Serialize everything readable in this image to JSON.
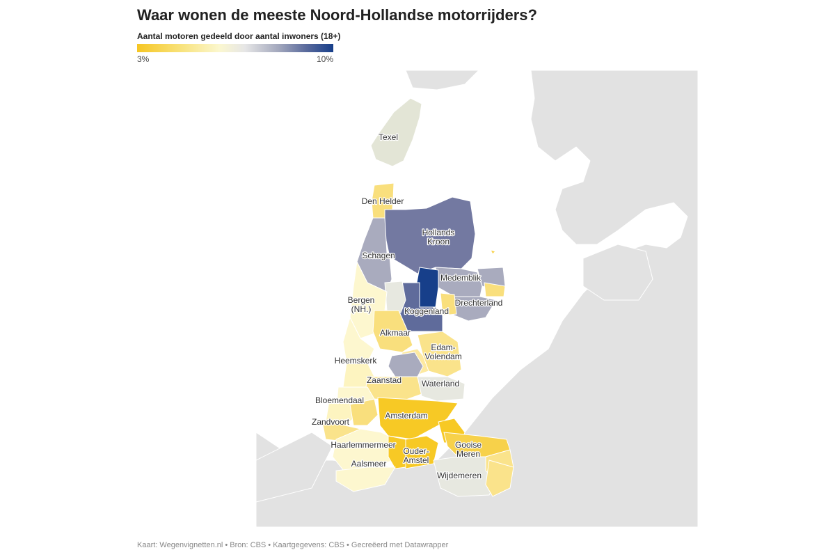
{
  "title": "Waar wonen de meeste Noord-Hollandse motorrijders?",
  "legend": {
    "title": "Aantal motoren gedeeld door aantal inwoners (18+)",
    "min_label": "3%",
    "max_label": "10%",
    "colors": [
      "#f6c623",
      "#f8e27a",
      "#fbf7cf",
      "#e6e6e6",
      "#a3a8bd",
      "#5b6b9d",
      "#173f8a"
    ]
  },
  "map": {
    "labels": {
      "texel": "Texel",
      "den_helder": "Den Helder",
      "hollands_kroon_1": "Hollands",
      "hollands_kroon_2": "Kroon",
      "schagen": "Schagen",
      "medemblik": "Medemblik",
      "bergen_1": "Bergen",
      "bergen_2": "(NH.)",
      "drechterland": "Drechterland",
      "koggenland": "Koggenland",
      "alkmaar": "Alkmaar",
      "edam_1": "Edam-",
      "edam_2": "Volendam",
      "heemskerk": "Heemskerk",
      "zaanstad": "Zaanstad",
      "waterland": "Waterland",
      "bloemendaal": "Bloemendaal",
      "amsterdam": "Amsterdam",
      "zandvoort": "Zandvoort",
      "haarlemmermeer": "Haarlemmermeer",
      "gooise_1": "Gooise",
      "gooise_2": "Meren",
      "ouder_1": "Ouder-",
      "ouder_2": "Amstel",
      "aalsmeer": "Aalsmeer",
      "wijdemeren": "Wijdemeren"
    }
  },
  "footer": "Kaart: Wegenvignetten.nl • Bron: CBS • Kaartgegevens: CBS • Gecreëerd met Datawrapper"
}
